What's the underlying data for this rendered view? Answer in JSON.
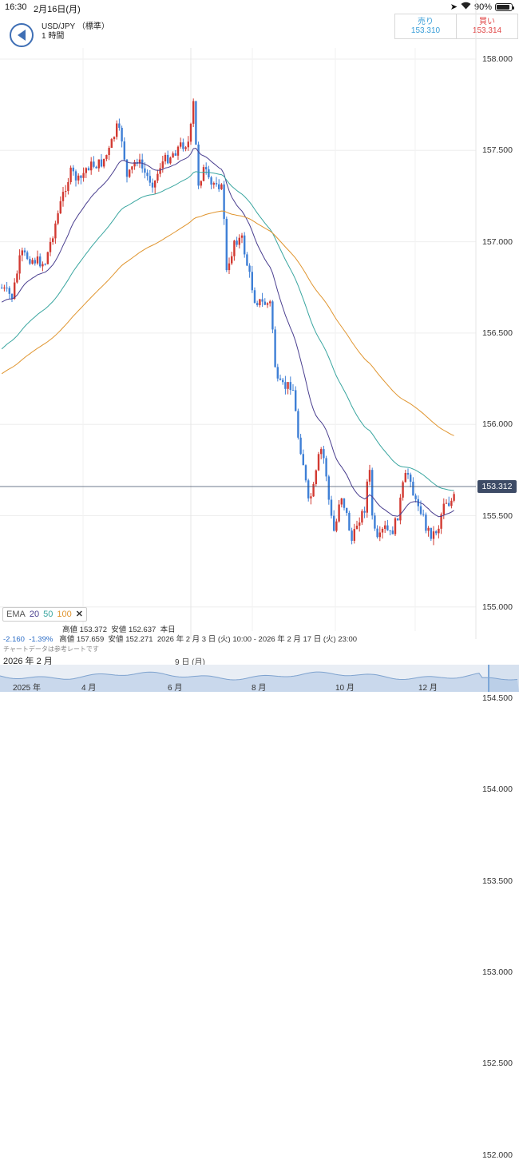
{
  "statusbar": {
    "time": "16:30",
    "date": "2月16日(月)",
    "battery": "90%",
    "battery_level": 0.9
  },
  "header": {
    "pair": "USD/JPY （標準）",
    "timeframe": "1 時間"
  },
  "quotes": {
    "sell_label": "売り",
    "sell_price": "153.310",
    "buy_label": "買い",
    "buy_price": "153.314"
  },
  "colors": {
    "up": "#d23a32",
    "down": "#3e7fd6",
    "ema20": "#4a3f8f",
    "ema50": "#3aa6a0",
    "ema100": "#e0952f",
    "price_line": "#3d4b66"
  },
  "price_axis": [
    "158.000",
    "157.500",
    "157.000",
    "156.500",
    "156.000",
    "155.500",
    "155.000",
    "154.500",
    "154.000",
    "153.500",
    "153.000",
    "152.500",
    "152.000"
  ],
  "current_price": "153.312",
  "ema": {
    "label": "EMA",
    "p20": "20",
    "p50": "50",
    "p100": "100",
    "close": "✕"
  },
  "stats": {
    "change": "-2.160",
    "change_pct": "-1.39%",
    "row1": {
      "high_label": "高値",
      "high": "153.372",
      "low_label": "安値",
      "low": "152.637",
      "period": "本日"
    },
    "row2": {
      "high_label": "高値",
      "high": "157.659",
      "low_label": "安値",
      "low": "152.271",
      "range": "2026 年 2 月 3 日 (火) 10:00 - 2026 年 2 月 17 日 (火) 23:00"
    }
  },
  "note": "チャートデータは参考レートです",
  "time_axis": {
    "month": "2026 年 2 月",
    "day": "9 日 (月)"
  },
  "navigator": [
    "2025 年",
    "4 月",
    "6 月",
    "8 月",
    "10 月",
    "12 月"
  ]
}
